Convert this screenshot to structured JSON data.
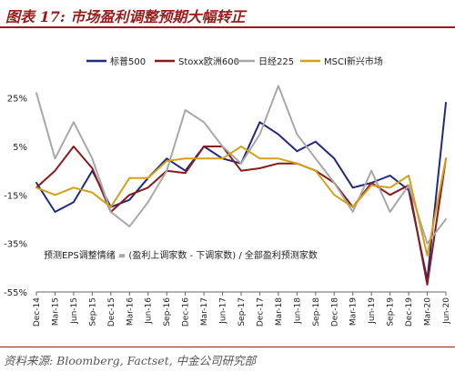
{
  "header": {
    "title": "图表 17:  市场盈利调整预期大幅转正"
  },
  "footer": {
    "source": "资料来源: Bloomberg, Factset, 中金公司研究部"
  },
  "chart_data": {
    "type": "line",
    "title": "图表 17:  市场盈利调整预期大幅转正",
    "xlabel": "",
    "ylabel": "",
    "ylim": [
      -55,
      35
    ],
    "yticks": [
      "25%",
      "5%",
      "-15%",
      "-35%",
      "-55%"
    ],
    "ytick_values": [
      25,
      5,
      -15,
      -35,
      -55
    ],
    "grid": false,
    "legend_position": "top",
    "annotation": "预测EPS调整情绪 = (盈利上调家数 - 下调家数) / 全部盈利预测家数",
    "categories": [
      "Dec-14",
      "Mar-15",
      "Jun-15",
      "Sep-15",
      "Dec-15",
      "Mar-16",
      "Jun-16",
      "Sep-16",
      "Dec-16",
      "Mar-17",
      "Jun-17",
      "Sep-17",
      "Dec-17",
      "Mar-18",
      "Jun-18",
      "Sep-18",
      "Dec-18",
      "Mar-19",
      "Jun-19",
      "Sep-19",
      "Dec-19",
      "Mar-20",
      "Jun-20"
    ],
    "series": [
      {
        "name": "标普500",
        "color": "#1f2a80",
        "values": [
          -10,
          -22,
          -18,
          -5,
          -20,
          -17,
          -8,
          0,
          -5,
          5,
          0,
          -2,
          15,
          10,
          3,
          7,
          0,
          -12,
          -10,
          -7,
          -13,
          -50,
          23
        ]
      },
      {
        "name": "Stoxx欧洲600",
        "color": "#8b1a1a",
        "values": [
          -12,
          -5,
          5,
          -4,
          -22,
          -15,
          -12,
          -5,
          -6,
          5,
          5,
          -5,
          -4,
          -2,
          -2,
          -5,
          -10,
          -20,
          -10,
          -15,
          -11,
          -52,
          0
        ]
      },
      {
        "name": "日经225",
        "color": "#a8a8a8",
        "values": [
          27,
          0,
          15,
          0,
          -22,
          -28,
          -18,
          -5,
          20,
          15,
          5,
          -2,
          10,
          30,
          10,
          0,
          -10,
          -22,
          -5,
          -22,
          -11,
          -35,
          -25
        ]
      },
      {
        "name": "MSCI新兴市场",
        "color": "#d4a017",
        "values": [
          -12,
          -15,
          -12,
          -14,
          -20,
          -8,
          -8,
          -1,
          0,
          0,
          0,
          5,
          0,
          0,
          -2,
          -5,
          -15,
          -20,
          -11,
          -12,
          -7,
          -40,
          0
        ]
      }
    ]
  }
}
